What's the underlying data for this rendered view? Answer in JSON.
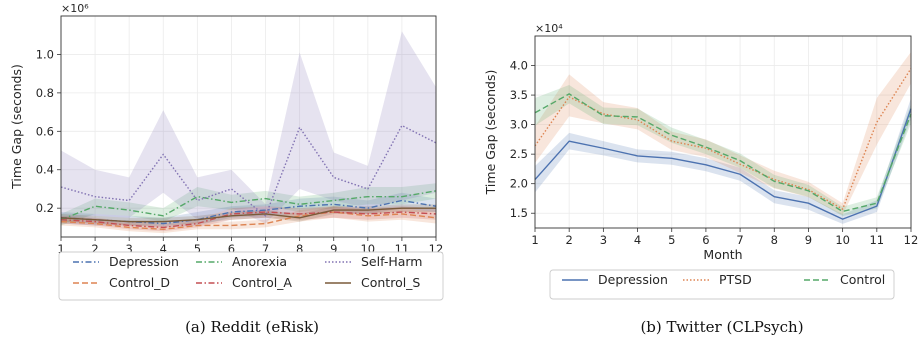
{
  "chart_data": [
    {
      "type": "line",
      "caption": "(a) Reddit (eRisk)",
      "xlabel": "Month",
      "ylabel": "Time Gap (seconds)",
      "multiplier_label": "×10⁶",
      "x": [
        1,
        2,
        3,
        4,
        5,
        6,
        7,
        8,
        9,
        10,
        11,
        12
      ],
      "xlim": [
        1,
        12
      ],
      "ylim": [
        0.05,
        1.2
      ],
      "yticks": [
        0.2,
        0.4,
        0.6,
        0.8,
        1.0
      ],
      "ytick_labels": [
        "0.2",
        "0.4",
        "0.6",
        "0.8",
        "1.0"
      ],
      "grid": true,
      "legend": {
        "placement": "bottom",
        "columns": 3
      },
      "series": [
        {
          "name": "Depression",
          "color": "#4c72b0",
          "style": "dashdot",
          "values": [
            0.15,
            0.14,
            0.13,
            0.12,
            0.14,
            0.18,
            0.19,
            0.21,
            0.22,
            0.2,
            0.24,
            0.21
          ],
          "band_low": [
            0.12,
            0.11,
            0.11,
            0.1,
            0.11,
            0.15,
            0.16,
            0.17,
            0.18,
            0.17,
            0.2,
            0.18
          ],
          "band_high": [
            0.18,
            0.17,
            0.16,
            0.15,
            0.18,
            0.21,
            0.22,
            0.25,
            0.26,
            0.24,
            0.28,
            0.25
          ]
        },
        {
          "name": "Anorexia",
          "color": "#55a868",
          "style": "dashdot",
          "values": [
            0.14,
            0.21,
            0.19,
            0.16,
            0.26,
            0.23,
            0.25,
            0.22,
            0.24,
            0.26,
            0.26,
            0.29
          ],
          "band_low": [
            0.11,
            0.17,
            0.16,
            0.13,
            0.21,
            0.19,
            0.21,
            0.18,
            0.2,
            0.22,
            0.22,
            0.25
          ],
          "band_high": [
            0.17,
            0.25,
            0.23,
            0.2,
            0.31,
            0.27,
            0.29,
            0.26,
            0.28,
            0.31,
            0.31,
            0.33
          ]
        },
        {
          "name": "Self-Harm",
          "color": "#8172b2",
          "style": "dotted",
          "values": [
            0.31,
            0.26,
            0.24,
            0.48,
            0.24,
            0.3,
            0.16,
            0.62,
            0.36,
            0.3,
            0.63,
            0.54
          ],
          "band_low": [
            0.14,
            0.16,
            0.15,
            0.28,
            0.14,
            0.2,
            0.12,
            0.3,
            0.24,
            0.2,
            0.24,
            0.28
          ],
          "band_high": [
            0.5,
            0.4,
            0.36,
            0.71,
            0.36,
            0.4,
            0.22,
            1.01,
            0.49,
            0.42,
            1.12,
            0.83
          ]
        },
        {
          "name": "Control_D",
          "color": "#dd8452",
          "style": "dashed",
          "values": [
            0.13,
            0.12,
            0.1,
            0.09,
            0.11,
            0.11,
            0.12,
            0.16,
            0.18,
            0.16,
            0.17,
            0.15
          ],
          "band_low": [
            0.11,
            0.1,
            0.08,
            0.07,
            0.09,
            0.09,
            0.1,
            0.13,
            0.15,
            0.13,
            0.14,
            0.12
          ],
          "band_high": [
            0.15,
            0.14,
            0.12,
            0.11,
            0.13,
            0.13,
            0.14,
            0.19,
            0.21,
            0.19,
            0.2,
            0.18
          ]
        },
        {
          "name": "Control_A",
          "color": "#c44e52",
          "style": "dashdot",
          "values": [
            0.14,
            0.13,
            0.11,
            0.1,
            0.12,
            0.17,
            0.18,
            0.17,
            0.18,
            0.17,
            0.18,
            0.17
          ],
          "band_low": [
            0.12,
            0.11,
            0.09,
            0.08,
            0.1,
            0.14,
            0.15,
            0.14,
            0.15,
            0.14,
            0.15,
            0.14
          ],
          "band_high": [
            0.16,
            0.15,
            0.13,
            0.12,
            0.14,
            0.2,
            0.21,
            0.2,
            0.21,
            0.2,
            0.21,
            0.2
          ]
        },
        {
          "name": "Control_S",
          "color": "#7a5a3a",
          "style": "solid",
          "values": [
            0.15,
            0.14,
            0.13,
            0.13,
            0.14,
            0.16,
            0.17,
            0.15,
            0.19,
            0.19,
            0.2,
            0.2
          ],
          "band_low": [
            0.13,
            0.12,
            0.11,
            0.11,
            0.12,
            0.14,
            0.15,
            0.13,
            0.17,
            0.17,
            0.18,
            0.18
          ],
          "band_high": [
            0.17,
            0.16,
            0.15,
            0.15,
            0.16,
            0.18,
            0.19,
            0.17,
            0.21,
            0.21,
            0.22,
            0.22
          ]
        }
      ]
    },
    {
      "type": "line",
      "caption": "(b) Twitter (CLPsych)",
      "xlabel": "Month",
      "ylabel": "Time Gap (seconds)",
      "multiplier_label": "×10⁴",
      "x": [
        1,
        2,
        3,
        4,
        5,
        6,
        7,
        8,
        9,
        10,
        11,
        12
      ],
      "xlim": [
        1,
        12
      ],
      "ylim": [
        1.25,
        4.5
      ],
      "yticks": [
        1.5,
        2.0,
        2.5,
        3.0,
        3.5,
        4.0
      ],
      "ytick_labels": [
        "1.5",
        "2.0",
        "2.5",
        "3.0",
        "3.5",
        "4.0"
      ],
      "grid": true,
      "legend": {
        "placement": "bottom",
        "columns": 3
      },
      "series": [
        {
          "name": "Depression",
          "color": "#4c72b0",
          "style": "solid",
          "values": [
            2.07,
            2.72,
            2.6,
            2.47,
            2.43,
            2.32,
            2.16,
            1.78,
            1.67,
            1.4,
            1.62,
            3.27
          ],
          "band_low": [
            1.85,
            2.58,
            2.48,
            2.36,
            2.32,
            2.21,
            2.05,
            1.67,
            1.56,
            1.32,
            1.52,
            3.1
          ],
          "band_high": [
            2.3,
            2.86,
            2.72,
            2.58,
            2.54,
            2.43,
            2.27,
            1.89,
            1.78,
            1.48,
            1.72,
            3.45
          ]
        },
        {
          "name": "PTSD",
          "color": "#dd8452",
          "style": "dotted",
          "values": [
            2.64,
            3.47,
            3.18,
            3.08,
            2.72,
            2.6,
            2.33,
            2.07,
            1.9,
            1.57,
            3.04,
            3.95
          ],
          "band_low": [
            2.35,
            3.14,
            3.02,
            2.92,
            2.57,
            2.45,
            2.18,
            1.92,
            1.77,
            1.47,
            2.66,
            3.7
          ],
          "band_high": [
            2.97,
            3.85,
            3.38,
            3.28,
            2.88,
            2.75,
            2.48,
            2.22,
            2.03,
            1.67,
            3.45,
            4.23
          ]
        },
        {
          "name": "Control",
          "color": "#55a868",
          "style": "dashed",
          "values": [
            3.2,
            3.52,
            3.15,
            3.13,
            2.82,
            2.62,
            2.39,
            2.04,
            1.88,
            1.53,
            1.67,
            3.18
          ],
          "band_low": [
            2.98,
            3.36,
            3.01,
            2.99,
            2.69,
            2.5,
            2.27,
            1.93,
            1.78,
            1.45,
            1.58,
            3.02
          ],
          "band_high": [
            3.45,
            3.67,
            3.29,
            3.27,
            2.95,
            2.74,
            2.51,
            2.15,
            1.98,
            1.61,
            1.77,
            3.35
          ]
        }
      ]
    }
  ]
}
